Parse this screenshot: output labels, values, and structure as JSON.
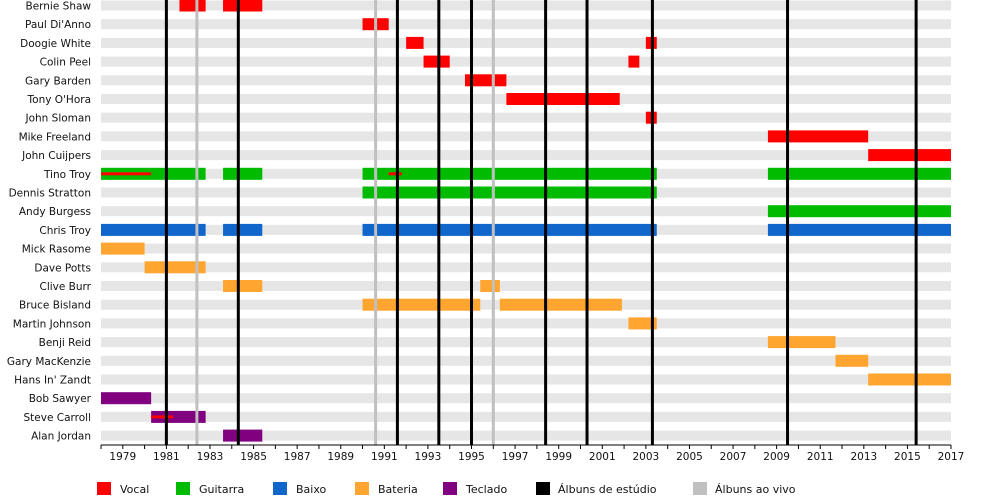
{
  "chart_data": {
    "type": "timeline",
    "title": "",
    "x_range": [
      1978,
      2017
    ],
    "x_ticks": [
      "1979",
      "1981",
      "1983",
      "1985",
      "1987",
      "1989",
      "1991",
      "1993",
      "1995",
      "1997",
      "1999",
      "2001",
      "2003",
      "2005",
      "2007",
      "2009",
      "2011",
      "2013",
      "2015",
      "2017"
    ],
    "roles": [
      {
        "key": "vocal",
        "label": "Vocal",
        "color": "#ff0000"
      },
      {
        "key": "guitar",
        "label": "Guitarra",
        "color": "#00bb00"
      },
      {
        "key": "bass",
        "label": "Baixo",
        "color": "#1166cc"
      },
      {
        "key": "drums",
        "label": "Bateria",
        "color": "#ffa530"
      },
      {
        "key": "keys",
        "label": "Teclado",
        "color": "#800080"
      }
    ],
    "legend_lines": [
      {
        "key": "studio",
        "label": "Álbuns de estúdio",
        "color": "#000000"
      },
      {
        "key": "live",
        "label": "Álbuns ao vivo",
        "color": "#c0c0c0"
      }
    ],
    "studio_albums": [
      1981.0,
      1984.3,
      1991.6,
      1993.5,
      1995.0,
      1998.4,
      2000.3,
      2003.3,
      2009.5,
      2015.4
    ],
    "live_albums": [
      1982.4,
      1990.6,
      1996.0
    ],
    "members": [
      {
        "name": "Bernie Shaw",
        "periods": [
          {
            "role": "vocal",
            "start": 1981.6,
            "end": 1982.8
          },
          {
            "role": "vocal",
            "start": 1983.6,
            "end": 1985.4
          }
        ]
      },
      {
        "name": "Paul Di'Anno",
        "periods": [
          {
            "role": "vocal",
            "start": 1990.0,
            "end": 1991.2
          }
        ]
      },
      {
        "name": "Doogie White",
        "periods": [
          {
            "role": "vocal",
            "start": 1992.0,
            "end": 1992.8
          },
          {
            "role": "vocal",
            "start": 2003.0,
            "end": 2003.5
          }
        ]
      },
      {
        "name": "Colin Peel",
        "periods": [
          {
            "role": "vocal",
            "start": 1992.8,
            "end": 1994.0
          },
          {
            "role": "vocal",
            "start": 2002.2,
            "end": 2002.7
          }
        ]
      },
      {
        "name": "Gary Barden",
        "periods": [
          {
            "role": "vocal",
            "start": 1994.7,
            "end": 1996.6
          }
        ]
      },
      {
        "name": "Tony O'Hora",
        "periods": [
          {
            "role": "vocal",
            "start": 1996.6,
            "end": 2001.8
          }
        ]
      },
      {
        "name": "John Sloman",
        "periods": [
          {
            "role": "vocal",
            "start": 2003.0,
            "end": 2003.5
          }
        ]
      },
      {
        "name": "Mike Freeland",
        "periods": [
          {
            "role": "vocal",
            "start": 2008.6,
            "end": 2013.2
          }
        ]
      },
      {
        "name": "John Cuijpers",
        "periods": [
          {
            "role": "vocal",
            "start": 2013.2,
            "end": 2017.0
          }
        ]
      },
      {
        "name": "Tino Troy",
        "periods": [
          {
            "role": "guitar",
            "start": 1978.0,
            "end": 1982.8
          },
          {
            "role": "guitar",
            "start": 1983.6,
            "end": 1985.4
          },
          {
            "role": "guitar",
            "start": 1990.0,
            "end": 2003.5
          },
          {
            "role": "guitar",
            "start": 2008.6,
            "end": 2017.0
          }
        ],
        "secondary": [
          {
            "role": "vocal",
            "start": 1978.0,
            "end": 1980.3
          },
          {
            "role": "vocal",
            "start": 1991.2,
            "end": 1991.8
          }
        ]
      },
      {
        "name": "Dennis Stratton",
        "periods": [
          {
            "role": "guitar",
            "start": 1990.0,
            "end": 2003.5
          }
        ]
      },
      {
        "name": "Andy Burgess",
        "periods": [
          {
            "role": "guitar",
            "start": 2008.6,
            "end": 2017.0
          }
        ]
      },
      {
        "name": "Chris Troy",
        "periods": [
          {
            "role": "bass",
            "start": 1978.0,
            "end": 1982.8
          },
          {
            "role": "bass",
            "start": 1983.6,
            "end": 1985.4
          },
          {
            "role": "bass",
            "start": 1990.0,
            "end": 2003.5
          },
          {
            "role": "bass",
            "start": 2008.6,
            "end": 2017.0
          }
        ]
      },
      {
        "name": "Mick Rasome",
        "periods": [
          {
            "role": "drums",
            "start": 1978.0,
            "end": 1980.0
          }
        ]
      },
      {
        "name": "Dave Potts",
        "periods": [
          {
            "role": "drums",
            "start": 1980.0,
            "end": 1982.8
          }
        ]
      },
      {
        "name": "Clive Burr",
        "periods": [
          {
            "role": "drums",
            "start": 1983.6,
            "end": 1985.4
          },
          {
            "role": "drums",
            "start": 1995.4,
            "end": 1996.3
          }
        ]
      },
      {
        "name": "Bruce Bisland",
        "periods": [
          {
            "role": "drums",
            "start": 1990.0,
            "end": 1995.4
          },
          {
            "role": "drums",
            "start": 1996.3,
            "end": 2001.9
          }
        ]
      },
      {
        "name": "Martin Johnson",
        "periods": [
          {
            "role": "drums",
            "start": 2002.2,
            "end": 2003.5
          }
        ]
      },
      {
        "name": "Benji Reid",
        "periods": [
          {
            "role": "drums",
            "start": 2008.6,
            "end": 2011.7
          }
        ]
      },
      {
        "name": "Gary MacKenzie",
        "periods": [
          {
            "role": "drums",
            "start": 2011.7,
            "end": 2013.2
          }
        ]
      },
      {
        "name": "Hans In' Zandt",
        "periods": [
          {
            "role": "drums",
            "start": 2013.2,
            "end": 2017.0
          }
        ]
      },
      {
        "name": "Bob Sawyer",
        "periods": [
          {
            "role": "keys",
            "start": 1978.0,
            "end": 1980.3
          }
        ]
      },
      {
        "name": "Steve Carroll",
        "periods": [
          {
            "role": "keys",
            "start": 1980.3,
            "end": 1982.8
          }
        ],
        "secondary": [
          {
            "role": "vocal",
            "start": 1980.3,
            "end": 1981.3
          }
        ]
      },
      {
        "name": "Alan Jordan",
        "periods": [
          {
            "role": "keys",
            "start": 1983.6,
            "end": 1985.4
          }
        ]
      }
    ]
  }
}
